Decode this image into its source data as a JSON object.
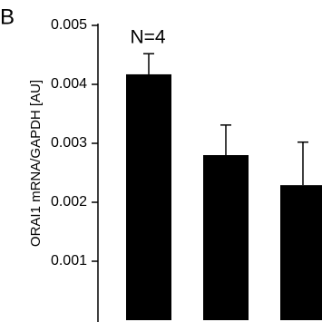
{
  "panel_label": "B",
  "chart_data": {
    "type": "bar",
    "y_label": "ORAI1 mRNA/GAPDH [AU]",
    "annotation": "N=4",
    "categories": [
      null,
      null,
      null
    ],
    "values": [
      0.00417,
      0.0028,
      0.00229
    ],
    "errors": [
      0.00035,
      0.00051,
      0.00073
    ],
    "color": "#000000",
    "ylim": [
      0,
      0.005
    ],
    "yticks": [
      0.001,
      0.002,
      0.003,
      0.004,
      0.005
    ]
  }
}
